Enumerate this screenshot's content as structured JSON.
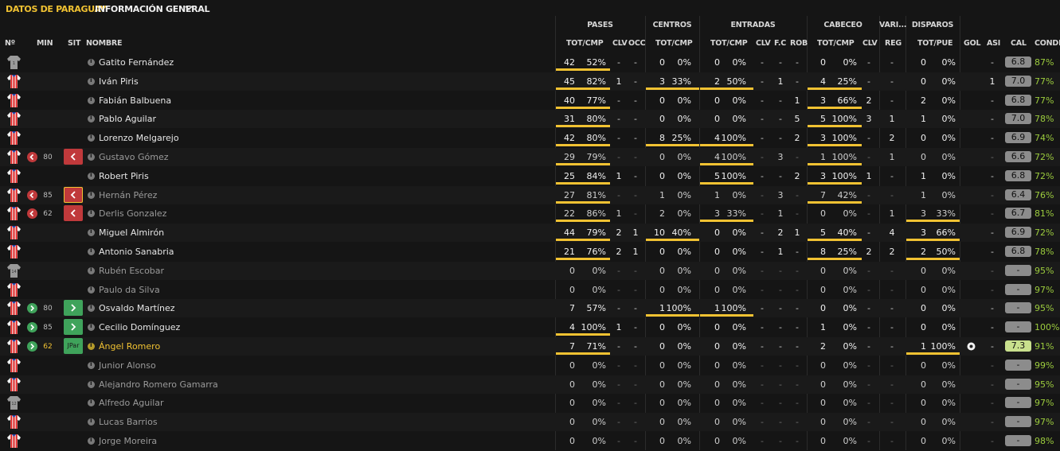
{
  "header": {
    "brand": "DATOS DE PARAGUAY",
    "view": "INFORMACIÓN GENERAL"
  },
  "groups": [
    "PASES",
    "CENTROS",
    "ENTRADAS",
    "CABECEO",
    "VARI...",
    "DISPAROS"
  ],
  "columns": [
    "Nº",
    "MIN",
    "SIT",
    "NOMBRE",
    "TOT/CMP",
    "CLV",
    "OCC",
    "TOT/CMP",
    "TOT/CMP",
    "CLV",
    "F.C",
    "ROB",
    "TOT/CMP",
    "CLV",
    "REG",
    "TOT/PUE",
    "GOL",
    "ASI",
    "CAL",
    "CONDIC"
  ],
  "colors": {
    "gold": "#f1c232",
    "cond_green": "#9ccc3d",
    "sub_off": "#c0393b",
    "sub_on": "#3fa35b"
  },
  "players": [
    {
      "name": "Gatito Fernández",
      "kit": "gk",
      "number": "1",
      "sub": "",
      "min": "",
      "sit": "",
      "pas": [
        "42",
        "52%"
      ],
      "pasclv": "-",
      "occ": "-",
      "cen": [
        "0",
        "0%"
      ],
      "ent": [
        "0",
        "0%"
      ],
      "entclv": "-",
      "fc": "-",
      "rob": "-",
      "cab": [
        "0",
        "0%"
      ],
      "cabclv": "-",
      "reg": "-",
      "dis": [
        "0",
        "0%"
      ],
      "gol": "",
      "asi": "-",
      "cal": "6.8",
      "cond": "87%",
      "bars": [
        1,
        0,
        0,
        0,
        0
      ],
      "dim": false
    },
    {
      "name": "Iván Piris",
      "kit": "home",
      "number": "",
      "sub": "",
      "min": "",
      "sit": "",
      "pas": [
        "45",
        "82%"
      ],
      "pasclv": "1",
      "occ": "-",
      "cen": [
        "3",
        "33%"
      ],
      "ent": [
        "2",
        "50%"
      ],
      "entclv": "-",
      "fc": "1",
      "rob": "-",
      "cab": [
        "4",
        "25%"
      ],
      "cabclv": "-",
      "reg": "-",
      "dis": [
        "0",
        "0%"
      ],
      "gol": "",
      "asi": "1",
      "cal": "7.0",
      "cond": "77%",
      "bars": [
        1,
        1,
        1,
        1,
        0
      ],
      "dim": false
    },
    {
      "name": "Fabián Balbuena",
      "kit": "home",
      "number": "",
      "sub": "",
      "min": "",
      "sit": "",
      "pas": [
        "40",
        "77%"
      ],
      "pasclv": "-",
      "occ": "-",
      "cen": [
        "0",
        "0%"
      ],
      "ent": [
        "0",
        "0%"
      ],
      "entclv": "-",
      "fc": "-",
      "rob": "1",
      "cab": [
        "3",
        "66%"
      ],
      "cabclv": "2",
      "reg": "-",
      "dis": [
        "2",
        "0%"
      ],
      "gol": "",
      "asi": "-",
      "cal": "6.8",
      "cond": "77%",
      "bars": [
        1,
        0,
        0,
        1,
        0
      ],
      "dim": false
    },
    {
      "name": "Pablo Aguilar",
      "kit": "home",
      "number": "",
      "sub": "",
      "min": "",
      "sit": "",
      "pas": [
        "31",
        "80%"
      ],
      "pasclv": "-",
      "occ": "-",
      "cen": [
        "0",
        "0%"
      ],
      "ent": [
        "0",
        "0%"
      ],
      "entclv": "-",
      "fc": "-",
      "rob": "5",
      "cab": [
        "5",
        "100%"
      ],
      "cabclv": "3",
      "reg": "1",
      "dis": [
        "1",
        "0%"
      ],
      "gol": "",
      "asi": "-",
      "cal": "7.0",
      "cond": "78%",
      "bars": [
        1,
        0,
        0,
        1,
        0
      ],
      "dim": false
    },
    {
      "name": "Lorenzo Melgarejo",
      "kit": "home",
      "number": "",
      "sub": "",
      "min": "",
      "sit": "",
      "pas": [
        "42",
        "80%"
      ],
      "pasclv": "-",
      "occ": "-",
      "cen": [
        "8",
        "25%"
      ],
      "ent": [
        "4",
        "100%"
      ],
      "entclv": "-",
      "fc": "-",
      "rob": "2",
      "cab": [
        "3",
        "100%"
      ],
      "cabclv": "-",
      "reg": "2",
      "dis": [
        "0",
        "0%"
      ],
      "gol": "",
      "asi": "-",
      "cal": "6.9",
      "cond": "74%",
      "bars": [
        1,
        1,
        1,
        1,
        0
      ],
      "dim": false
    },
    {
      "name": "Gustavo Gómez",
      "kit": "home",
      "number": "",
      "sub": "off",
      "min": "80",
      "sit": "off",
      "pas": [
        "29",
        "79%"
      ],
      "pasclv": "-",
      "occ": "-",
      "cen": [
        "0",
        "0%"
      ],
      "ent": [
        "4",
        "100%"
      ],
      "entclv": "-",
      "fc": "3",
      "rob": "-",
      "cab": [
        "1",
        "100%"
      ],
      "cabclv": "-",
      "reg": "1",
      "dis": [
        "0",
        "0%"
      ],
      "gol": "",
      "asi": "-",
      "cal": "6.6",
      "cond": "72%",
      "bars": [
        1,
        0,
        1,
        1,
        0
      ],
      "dim": true
    },
    {
      "name": "Robert Piris",
      "kit": "home",
      "number": "",
      "sub": "",
      "min": "",
      "sit": "",
      "pas": [
        "25",
        "84%"
      ],
      "pasclv": "1",
      "occ": "-",
      "cen": [
        "0",
        "0%"
      ],
      "ent": [
        "5",
        "100%"
      ],
      "entclv": "-",
      "fc": "-",
      "rob": "2",
      "cab": [
        "3",
        "100%"
      ],
      "cabclv": "1",
      "reg": "-",
      "dis": [
        "1",
        "0%"
      ],
      "gol": "",
      "asi": "-",
      "cal": "6.8",
      "cond": "72%",
      "bars": [
        1,
        0,
        1,
        1,
        0
      ],
      "dim": false
    },
    {
      "name": "Hernán Pérez",
      "kit": "home",
      "number": "",
      "sub": "off",
      "min": "85",
      "sit": "off",
      "pas": [
        "27",
        "81%"
      ],
      "pasclv": "-",
      "occ": "-",
      "cen": [
        "1",
        "0%"
      ],
      "ent": [
        "1",
        "0%"
      ],
      "entclv": "-",
      "fc": "3",
      "rob": "-",
      "cab": [
        "7",
        "42%"
      ],
      "cabclv": "-",
      "reg": "-",
      "dis": [
        "1",
        "0%"
      ],
      "gol": "",
      "asi": "-",
      "cal": "6.4",
      "cond": "76%",
      "bars": [
        1,
        0,
        0,
        1,
        0
      ],
      "dim": true
    },
    {
      "name": "Derlis Gonzalez",
      "kit": "home",
      "number": "",
      "sub": "off",
      "min": "62",
      "sit": "off",
      "pas": [
        "22",
        "86%"
      ],
      "pasclv": "1",
      "occ": "-",
      "cen": [
        "2",
        "0%"
      ],
      "ent": [
        "3",
        "33%"
      ],
      "entclv": "-",
      "fc": "1",
      "rob": "-",
      "cab": [
        "0",
        "0%"
      ],
      "cabclv": "-",
      "reg": "1",
      "dis": [
        "3",
        "33%"
      ],
      "gol": "",
      "asi": "-",
      "cal": "6.7",
      "cond": "81%",
      "bars": [
        1,
        0,
        1,
        0,
        1
      ],
      "dim": true
    },
    {
      "name": "Miguel Almirón",
      "kit": "home",
      "number": "",
      "sub": "",
      "min": "",
      "sit": "",
      "pas": [
        "44",
        "79%"
      ],
      "pasclv": "2",
      "occ": "1",
      "cen": [
        "10",
        "40%"
      ],
      "ent": [
        "0",
        "0%"
      ],
      "entclv": "-",
      "fc": "2",
      "rob": "1",
      "cab": [
        "5",
        "40%"
      ],
      "cabclv": "-",
      "reg": "4",
      "dis": [
        "3",
        "66%"
      ],
      "gol": "",
      "asi": "-",
      "cal": "6.9",
      "cond": "72%",
      "bars": [
        1,
        1,
        0,
        1,
        1
      ],
      "dim": false
    },
    {
      "name": "Antonio Sanabria",
      "kit": "home",
      "number": "",
      "sub": "",
      "min": "",
      "sit": "",
      "pas": [
        "21",
        "76%"
      ],
      "pasclv": "2",
      "occ": "1",
      "cen": [
        "0",
        "0%"
      ],
      "ent": [
        "0",
        "0%"
      ],
      "entclv": "-",
      "fc": "1",
      "rob": "-",
      "cab": [
        "8",
        "25%"
      ],
      "cabclv": "2",
      "reg": "2",
      "dis": [
        "2",
        "50%"
      ],
      "gol": "",
      "asi": "-",
      "cal": "6.8",
      "cond": "78%",
      "bars": [
        1,
        0,
        0,
        1,
        1
      ],
      "dim": false
    },
    {
      "name": "Rubén Escobar",
      "kit": "gk",
      "number": "14",
      "sub": "",
      "min": "",
      "sit": "",
      "pas": [
        "0",
        "0%"
      ],
      "pasclv": "-",
      "occ": "-",
      "cen": [
        "0",
        "0%"
      ],
      "ent": [
        "0",
        "0%"
      ],
      "entclv": "-",
      "fc": "-",
      "rob": "-",
      "cab": [
        "0",
        "0%"
      ],
      "cabclv": "-",
      "reg": "-",
      "dis": [
        "0",
        "0%"
      ],
      "gol": "",
      "asi": "-",
      "cal": "-",
      "cond": "95%",
      "bars": [
        0,
        0,
        0,
        0,
        0
      ],
      "dim": true
    },
    {
      "name": "Paulo da Silva",
      "kit": "home",
      "number": "",
      "sub": "",
      "min": "",
      "sit": "",
      "pas": [
        "0",
        "0%"
      ],
      "pasclv": "-",
      "occ": "-",
      "cen": [
        "0",
        "0%"
      ],
      "ent": [
        "0",
        "0%"
      ],
      "entclv": "-",
      "fc": "-",
      "rob": "-",
      "cab": [
        "0",
        "0%"
      ],
      "cabclv": "-",
      "reg": "-",
      "dis": [
        "0",
        "0%"
      ],
      "gol": "",
      "asi": "-",
      "cal": "-",
      "cond": "97%",
      "bars": [
        0,
        0,
        0,
        0,
        0
      ],
      "dim": true
    },
    {
      "name": "Osvaldo Martínez",
      "kit": "home",
      "number": "",
      "sub": "on",
      "min": "80",
      "sit": "on",
      "pas": [
        "7",
        "57%"
      ],
      "pasclv": "-",
      "occ": "-",
      "cen": [
        "1",
        "100%"
      ],
      "ent": [
        "1",
        "100%"
      ],
      "entclv": "-",
      "fc": "-",
      "rob": "-",
      "cab": [
        "0",
        "0%"
      ],
      "cabclv": "-",
      "reg": "-",
      "dis": [
        "0",
        "0%"
      ],
      "gol": "",
      "asi": "-",
      "cal": "-",
      "cond": "95%",
      "bars": [
        0,
        1,
        1,
        0,
        0
      ],
      "dim": false
    },
    {
      "name": "Cecilio Domínguez",
      "kit": "home",
      "number": "",
      "sub": "on",
      "min": "85",
      "sit": "on",
      "pas": [
        "4",
        "100%"
      ],
      "pasclv": "1",
      "occ": "-",
      "cen": [
        "0",
        "0%"
      ],
      "ent": [
        "0",
        "0%"
      ],
      "entclv": "-",
      "fc": "-",
      "rob": "-",
      "cab": [
        "1",
        "0%"
      ],
      "cabclv": "-",
      "reg": "-",
      "dis": [
        "0",
        "0%"
      ],
      "gol": "",
      "asi": "-",
      "cal": "-",
      "cond": "100%",
      "bars": [
        1,
        0,
        0,
        0,
        0
      ],
      "dim": false
    },
    {
      "name": "Ángel Romero",
      "kit": "home",
      "number": "",
      "sub": "on",
      "min": "62",
      "sit": "JPar",
      "pas": [
        "7",
        "71%"
      ],
      "pasclv": "-",
      "occ": "-",
      "cen": [
        "0",
        "0%"
      ],
      "ent": [
        "0",
        "0%"
      ],
      "entclv": "-",
      "fc": "-",
      "rob": "-",
      "cab": [
        "2",
        "0%"
      ],
      "cabclv": "-",
      "reg": "-",
      "dis": [
        "1",
        "100%"
      ],
      "gol": "ball",
      "asi": "-",
      "cal": "7.3",
      "cond": "91%",
      "bars": [
        1,
        0,
        0,
        0,
        1
      ],
      "dim": false,
      "gold": true
    },
    {
      "name": "Junior Alonso",
      "kit": "home",
      "number": "",
      "sub": "",
      "min": "",
      "sit": "",
      "pas": [
        "0",
        "0%"
      ],
      "pasclv": "-",
      "occ": "-",
      "cen": [
        "0",
        "0%"
      ],
      "ent": [
        "0",
        "0%"
      ],
      "entclv": "-",
      "fc": "-",
      "rob": "-",
      "cab": [
        "0",
        "0%"
      ],
      "cabclv": "-",
      "reg": "-",
      "dis": [
        "0",
        "0%"
      ],
      "gol": "",
      "asi": "-",
      "cal": "-",
      "cond": "99%",
      "bars": [
        0,
        0,
        0,
        0,
        0
      ],
      "dim": true
    },
    {
      "name": "Alejandro Romero Gamarra",
      "kit": "home",
      "number": "",
      "sub": "",
      "min": "",
      "sit": "",
      "pas": [
        "0",
        "0%"
      ],
      "pasclv": "-",
      "occ": "-",
      "cen": [
        "0",
        "0%"
      ],
      "ent": [
        "0",
        "0%"
      ],
      "entclv": "-",
      "fc": "-",
      "rob": "-",
      "cab": [
        "0",
        "0%"
      ],
      "cabclv": "-",
      "reg": "-",
      "dis": [
        "0",
        "0%"
      ],
      "gol": "",
      "asi": "-",
      "cal": "-",
      "cond": "95%",
      "bars": [
        0,
        0,
        0,
        0,
        0
      ],
      "dim": true
    },
    {
      "name": "Alfredo Aguilar",
      "kit": "gk",
      "number": "12",
      "sub": "",
      "min": "",
      "sit": "",
      "pas": [
        "0",
        "0%"
      ],
      "pasclv": "-",
      "occ": "-",
      "cen": [
        "0",
        "0%"
      ],
      "ent": [
        "0",
        "0%"
      ],
      "entclv": "-",
      "fc": "-",
      "rob": "-",
      "cab": [
        "0",
        "0%"
      ],
      "cabclv": "-",
      "reg": "-",
      "dis": [
        "0",
        "0%"
      ],
      "gol": "",
      "asi": "-",
      "cal": "-",
      "cond": "97%",
      "bars": [
        0,
        0,
        0,
        0,
        0
      ],
      "dim": true
    },
    {
      "name": "Lucas Barrios",
      "kit": "home",
      "number": "",
      "sub": "",
      "min": "",
      "sit": "",
      "pas": [
        "0",
        "0%"
      ],
      "pasclv": "-",
      "occ": "-",
      "cen": [
        "0",
        "0%"
      ],
      "ent": [
        "0",
        "0%"
      ],
      "entclv": "-",
      "fc": "-",
      "rob": "-",
      "cab": [
        "0",
        "0%"
      ],
      "cabclv": "-",
      "reg": "-",
      "dis": [
        "0",
        "0%"
      ],
      "gol": "",
      "asi": "-",
      "cal": "-",
      "cond": "97%",
      "bars": [
        0,
        0,
        0,
        0,
        0
      ],
      "dim": true
    },
    {
      "name": "Jorge Moreira",
      "kit": "home",
      "number": "",
      "sub": "",
      "min": "",
      "sit": "",
      "pas": [
        "0",
        "0%"
      ],
      "pasclv": "-",
      "occ": "-",
      "cen": [
        "0",
        "0%"
      ],
      "ent": [
        "0",
        "0%"
      ],
      "entclv": "-",
      "fc": "-",
      "rob": "-",
      "cab": [
        "0",
        "0%"
      ],
      "cabclv": "-",
      "reg": "-",
      "dis": [
        "0",
        "0%"
      ],
      "gol": "",
      "asi": "-",
      "cal": "-",
      "cond": "98%",
      "bars": [
        0,
        0,
        0,
        0,
        0
      ],
      "dim": true
    }
  ]
}
